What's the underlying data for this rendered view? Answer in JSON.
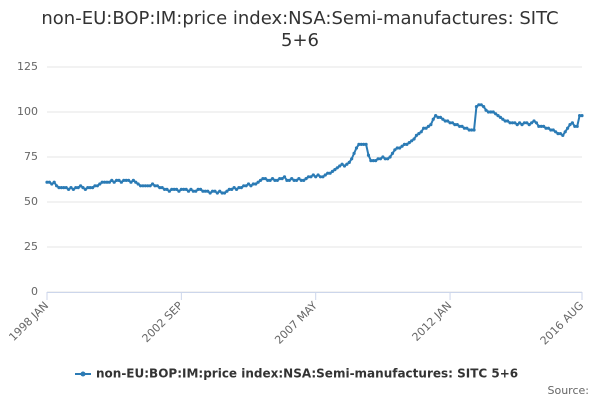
{
  "chart_data": {
    "type": "line",
    "title": "non-EU:BOP:IM:price index:NSA:Semi-manufactures: SITC 5+6",
    "source_label": "Source:",
    "categories": [
      "1998 JAN",
      null,
      null,
      null,
      null,
      null,
      null,
      null,
      null,
      null,
      null,
      null,
      null,
      null,
      null,
      null,
      null,
      null,
      null,
      null,
      null,
      null,
      null,
      null,
      null,
      null,
      null,
      null,
      null,
      null,
      null,
      null,
      null,
      null,
      null,
      null,
      null,
      null,
      null,
      null,
      null,
      null,
      null,
      null,
      null,
      null,
      null,
      null,
      null,
      null,
      null,
      null,
      null,
      null,
      null,
      null,
      "2002 SEP",
      null,
      null,
      null,
      null,
      null,
      null,
      null,
      null,
      null,
      null,
      null,
      null,
      null,
      null,
      null,
      null,
      null,
      null,
      null,
      null,
      null,
      null,
      null,
      null,
      null,
      null,
      null,
      null,
      null,
      null,
      null,
      null,
      null,
      null,
      null,
      null,
      null,
      null,
      null,
      null,
      null,
      null,
      null,
      null,
      null,
      null,
      null,
      null,
      null,
      null,
      null,
      null,
      null,
      null,
      null,
      "2007 MAY",
      null,
      null,
      null,
      null,
      null,
      null,
      null,
      null,
      null,
      null,
      null,
      null,
      null,
      null,
      null,
      null,
      null,
      null,
      null,
      null,
      null,
      null,
      null,
      null,
      null,
      null,
      null,
      null,
      null,
      null,
      null,
      null,
      null,
      null,
      null,
      null,
      null,
      null,
      null,
      null,
      null,
      null,
      null,
      null,
      null,
      null,
      null,
      null,
      null,
      null,
      null,
      null,
      null,
      null,
      null,
      "2012 JAN",
      null,
      null,
      null,
      null,
      null,
      null,
      null,
      null,
      null,
      null,
      null,
      null,
      null,
      null,
      null,
      null,
      null,
      null,
      null,
      null,
      null,
      null,
      null,
      null,
      null,
      null,
      null,
      null,
      null,
      null,
      null,
      null,
      null,
      null,
      null,
      null,
      null,
      null,
      null,
      null,
      null,
      null,
      null,
      null,
      null,
      null,
      null,
      null,
      null,
      null,
      null,
      null,
      null,
      null,
      "2016 AUG"
    ],
    "series": [
      {
        "name": "non-EU:BOP:IM:price index:NSA:Semi-manufactures: SITC 5+6",
        "color": "#2b7bb5",
        "values": [
          61,
          61,
          60,
          61,
          59,
          58,
          58,
          58,
          58,
          57,
          58,
          57,
          58,
          58,
          59,
          58,
          57,
          58,
          58,
          58,
          59,
          59,
          60,
          61,
          61,
          61,
          61,
          62,
          61,
          62,
          62,
          61,
          62,
          62,
          62,
          61,
          62,
          61,
          60,
          59,
          59,
          59,
          59,
          59,
          60,
          59,
          59,
          58,
          58,
          57,
          57,
          56,
          57,
          57,
          57,
          56,
          57,
          57,
          57,
          56,
          57,
          56,
          56,
          57,
          57,
          56,
          56,
          56,
          55,
          56,
          56,
          55,
          56,
          55,
          55,
          56,
          57,
          57,
          58,
          57,
          58,
          58,
          59,
          59,
          60,
          59,
          60,
          60,
          61,
          62,
          63,
          63,
          62,
          62,
          63,
          62,
          62,
          63,
          63,
          64,
          62,
          62,
          63,
          62,
          62,
          63,
          62,
          62,
          63,
          64,
          64,
          65,
          64,
          65,
          64,
          64,
          65,
          66,
          66,
          67,
          68,
          69,
          70,
          71,
          70,
          71,
          72,
          74,
          77,
          80,
          82,
          82,
          82,
          82,
          76,
          73,
          73,
          73,
          74,
          74,
          75,
          74,
          74,
          75,
          77,
          79,
          80,
          80,
          81,
          82,
          82,
          83,
          84,
          85,
          87,
          88,
          89,
          91,
          91,
          92,
          93,
          96,
          98,
          97,
          97,
          96,
          95,
          95,
          94,
          94,
          93,
          93,
          92,
          92,
          91,
          91,
          90,
          90,
          90,
          103,
          104,
          104,
          103,
          101,
          100,
          100,
          100,
          99,
          98,
          97,
          96,
          95,
          95,
          94,
          94,
          94,
          93,
          94,
          93,
          94,
          94,
          93,
          94,
          95,
          94,
          92,
          92,
          92,
          91,
          91,
          90,
          90,
          89,
          88,
          88,
          87,
          89,
          91,
          93,
          94,
          92,
          92,
          98,
          98
        ]
      }
    ],
    "ylim": [
      0,
      125
    ],
    "yticks": [
      0,
      25,
      50,
      75,
      100,
      125
    ],
    "grid": true
  }
}
